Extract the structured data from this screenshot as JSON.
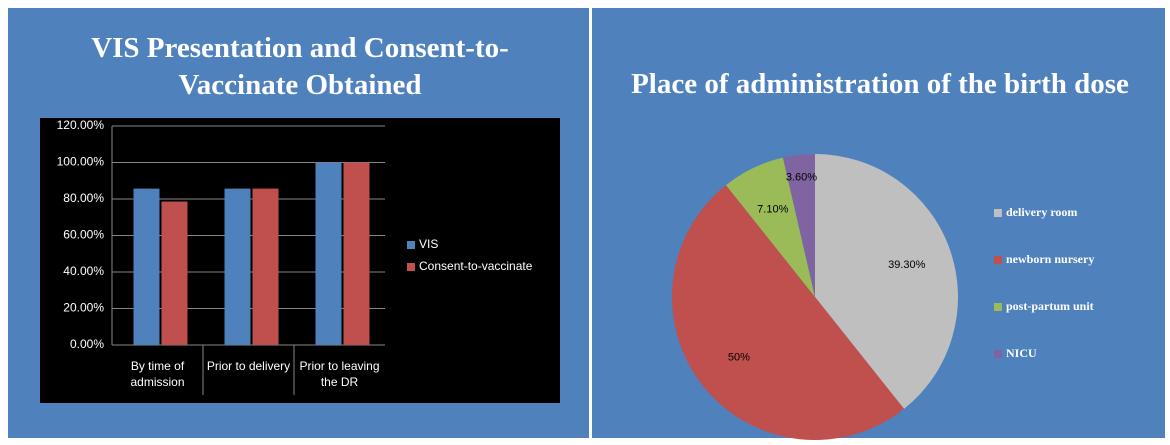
{
  "chart_data": [
    {
      "type": "bar",
      "title": "VIS Presentation and Consent-to-Vaccinate Obtained",
      "categories": [
        "By time of admission",
        "Prior to delivery",
        "Prior to leaving the DR"
      ],
      "series": [
        {
          "name": "VIS",
          "color": "#4f81bd",
          "values": [
            85.7,
            85.7,
            100
          ]
        },
        {
          "name": "Consent-to-vaccinate",
          "color": "#c0504d",
          "values": [
            78.6,
            85.7,
            100
          ]
        }
      ],
      "ylim": [
        0,
        120
      ],
      "yticks": [
        {
          "value": 0,
          "label": "0.00%"
        },
        {
          "value": 20,
          "label": "20.00%"
        },
        {
          "value": 40,
          "label": "40.00%"
        },
        {
          "value": 60,
          "label": "60.00%"
        },
        {
          "value": 80,
          "label": "80.00%"
        },
        {
          "value": 100,
          "label": "100.00%"
        },
        {
          "value": 120,
          "label": "120.00%"
        }
      ],
      "grid": true,
      "legend": "right"
    },
    {
      "type": "pie",
      "title": "Place of administration of the birth dose",
      "categories": [
        "delivery room",
        "newborn nursery",
        "post-partum unit",
        "NICU"
      ],
      "values": [
        39.3,
        50,
        7.1,
        3.6
      ],
      "value_labels": [
        "39.30%",
        "50%",
        "7.10%",
        "3.60%"
      ],
      "colors": [
        "#bfbfbf",
        "#c0504d",
        "#9bbb59",
        "#8064a2"
      ],
      "legend": "right"
    }
  ]
}
